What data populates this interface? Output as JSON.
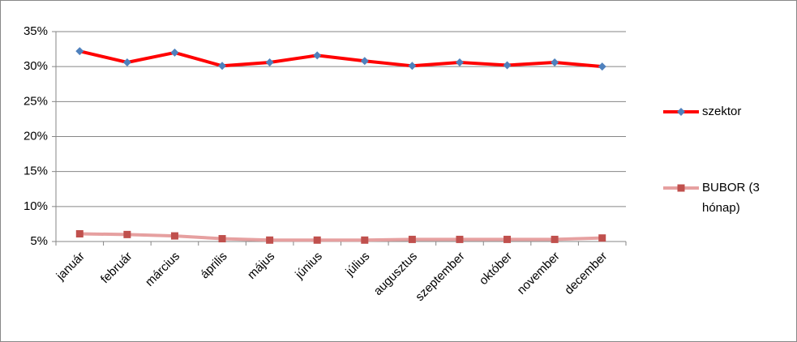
{
  "chart_data": {
    "type": "line",
    "categories": [
      "január",
      "február",
      "március",
      "április",
      "május",
      "június",
      "július",
      "augusztus",
      "szeptember",
      "október",
      "november",
      "december"
    ],
    "series": [
      {
        "name": "szektor",
        "color": "#ff0000",
        "marker": "diamond",
        "marker_color": "#4f81bd",
        "values": [
          32.2,
          30.6,
          32.0,
          30.1,
          30.6,
          31.6,
          30.8,
          30.1,
          30.6,
          30.2,
          30.6,
          30.0
        ]
      },
      {
        "name": "BUBOR (3 hónap)",
        "color": "#e6a0a0",
        "marker": "square",
        "marker_color": "#c0504d",
        "values": [
          6.1,
          6.0,
          5.8,
          5.4,
          5.2,
          5.2,
          5.2,
          5.3,
          5.3,
          5.3,
          5.3,
          5.5
        ]
      }
    ],
    "ylim": [
      5,
      35
    ],
    "yticks": [
      {
        "value": 5,
        "label": "5%"
      },
      {
        "value": 10,
        "label": "10%"
      },
      {
        "value": 15,
        "label": "15%"
      },
      {
        "value": 20,
        "label": "20%"
      },
      {
        "value": 25,
        "label": "25%"
      },
      {
        "value": 30,
        "label": "30%"
      },
      {
        "value": 35,
        "label": "35%"
      }
    ],
    "grid": true,
    "legend": "right"
  }
}
